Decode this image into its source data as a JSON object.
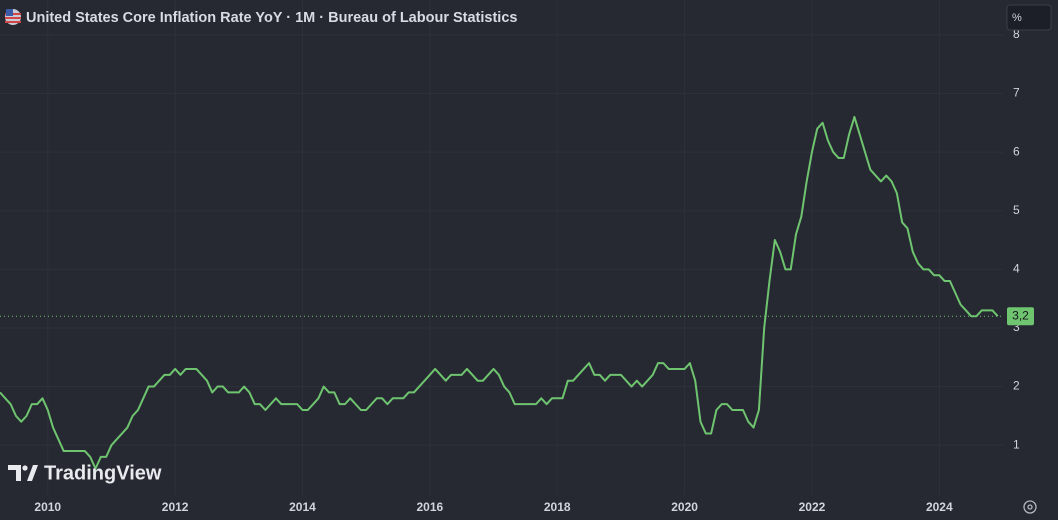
{
  "chart_data": {
    "type": "line",
    "title": "United States Core Inflation Rate YoY · 1M · Bureau of Labour Statistics",
    "unit_button": "%",
    "watermark": "TradingView",
    "x": [
      2009.25,
      2009.333,
      2009.417,
      2009.5,
      2009.583,
      2009.667,
      2009.75,
      2009.833,
      2009.917,
      2010.0,
      2010.083,
      2010.167,
      2010.25,
      2010.333,
      2010.417,
      2010.5,
      2010.583,
      2010.667,
      2010.75,
      2010.833,
      2010.917,
      2011.0,
      2011.083,
      2011.167,
      2011.25,
      2011.333,
      2011.417,
      2011.5,
      2011.583,
      2011.667,
      2011.75,
      2011.833,
      2011.917,
      2012.0,
      2012.083,
      2012.167,
      2012.25,
      2012.333,
      2012.417,
      2012.5,
      2012.583,
      2012.667,
      2012.75,
      2012.833,
      2012.917,
      2013.0,
      2013.083,
      2013.167,
      2013.25,
      2013.333,
      2013.417,
      2013.5,
      2013.583,
      2013.667,
      2013.75,
      2013.833,
      2013.917,
      2014.0,
      2014.083,
      2014.167,
      2014.25,
      2014.333,
      2014.417,
      2014.5,
      2014.583,
      2014.667,
      2014.75,
      2014.833,
      2014.917,
      2015.0,
      2015.083,
      2015.167,
      2015.25,
      2015.333,
      2015.417,
      2015.5,
      2015.583,
      2015.667,
      2015.75,
      2015.833,
      2015.917,
      2016.0,
      2016.083,
      2016.167,
      2016.25,
      2016.333,
      2016.417,
      2016.5,
      2016.583,
      2016.667,
      2016.75,
      2016.833,
      2016.917,
      2017.0,
      2017.083,
      2017.167,
      2017.25,
      2017.333,
      2017.417,
      2017.5,
      2017.583,
      2017.667,
      2017.75,
      2017.833,
      2017.917,
      2018.0,
      2018.083,
      2018.167,
      2018.25,
      2018.333,
      2018.417,
      2018.5,
      2018.583,
      2018.667,
      2018.75,
      2018.833,
      2018.917,
      2019.0,
      2019.083,
      2019.167,
      2019.25,
      2019.333,
      2019.417,
      2019.5,
      2019.583,
      2019.667,
      2019.75,
      2019.833,
      2019.917,
      2020.0,
      2020.083,
      2020.167,
      2020.25,
      2020.333,
      2020.417,
      2020.5,
      2020.583,
      2020.667,
      2020.75,
      2020.833,
      2020.917,
      2021.0,
      2021.083,
      2021.167,
      2021.25,
      2021.333,
      2021.417,
      2021.5,
      2021.583,
      2021.667,
      2021.75,
      2021.833,
      2021.917,
      2022.0,
      2022.083,
      2022.167,
      2022.25,
      2022.333,
      2022.417,
      2022.5,
      2022.583,
      2022.667,
      2022.75,
      2022.833,
      2022.917,
      2023.0,
      2023.083,
      2023.167,
      2023.25,
      2023.333,
      2023.417,
      2023.5,
      2023.583,
      2023.667,
      2023.75,
      2023.833,
      2023.917,
      2024.0,
      2024.083,
      2024.167,
      2024.25,
      2024.333,
      2024.417,
      2024.5,
      2024.583,
      2024.667,
      2024.75,
      2024.833,
      2024.917
    ],
    "series": [
      {
        "color": "#6fc46f",
        "values": [
          1.9,
          1.8,
          1.7,
          1.5,
          1.4,
          1.5,
          1.7,
          1.7,
          1.8,
          1.6,
          1.3,
          1.1,
          0.9,
          0.9,
          0.9,
          0.9,
          0.9,
          0.8,
          0.6,
          0.8,
          0.8,
          1.0,
          1.1,
          1.2,
          1.3,
          1.5,
          1.6,
          1.8,
          2.0,
          2.0,
          2.1,
          2.2,
          2.2,
          2.3,
          2.2,
          2.3,
          2.3,
          2.3,
          2.2,
          2.1,
          1.9,
          2.0,
          2.0,
          1.9,
          1.9,
          1.9,
          2.0,
          1.9,
          1.7,
          1.7,
          1.6,
          1.7,
          1.8,
          1.7,
          1.7,
          1.7,
          1.7,
          1.6,
          1.6,
          1.7,
          1.8,
          2.0,
          1.9,
          1.9,
          1.7,
          1.7,
          1.8,
          1.7,
          1.6,
          1.6,
          1.7,
          1.8,
          1.8,
          1.7,
          1.8,
          1.8,
          1.8,
          1.9,
          1.9,
          2.0,
          2.1,
          2.2,
          2.3,
          2.2,
          2.1,
          2.2,
          2.2,
          2.2,
          2.3,
          2.2,
          2.1,
          2.1,
          2.2,
          2.3,
          2.2,
          2.0,
          1.9,
          1.7,
          1.7,
          1.7,
          1.7,
          1.7,
          1.8,
          1.7,
          1.8,
          1.8,
          1.8,
          2.1,
          2.1,
          2.2,
          2.3,
          2.4,
          2.2,
          2.2,
          2.1,
          2.2,
          2.2,
          2.2,
          2.1,
          2.0,
          2.1,
          2.0,
          2.1,
          2.2,
          2.4,
          2.4,
          2.3,
          2.3,
          2.3,
          2.3,
          2.4,
          2.1,
          1.4,
          1.2,
          1.2,
          1.6,
          1.7,
          1.7,
          1.6,
          1.6,
          1.6,
          1.4,
          1.3,
          1.6,
          3.0,
          3.8,
          4.5,
          4.3,
          4.0,
          4.0,
          4.6,
          4.9,
          5.5,
          6.0,
          6.4,
          6.5,
          6.2,
          6.0,
          5.9,
          5.9,
          6.3,
          6.6,
          6.3,
          6.0,
          5.7,
          5.6,
          5.5,
          5.6,
          5.5,
          5.3,
          4.8,
          4.7,
          4.3,
          4.1,
          4.0,
          4.0,
          3.9,
          3.9,
          3.8,
          3.8,
          3.6,
          3.4,
          3.3,
          3.2,
          3.2,
          3.3,
          3.3,
          3.3,
          3.2
        ]
      }
    ],
    "price_line": {
      "value": 3.2,
      "label": "3,2"
    },
    "xlim": [
      2009.25,
      2025.0
    ],
    "xticks": [
      2010,
      2012,
      2014,
      2016,
      2018,
      2020,
      2022,
      2024
    ],
    "ylim": [
      0.15,
      8.1
    ],
    "yticks": [
      1,
      2,
      3,
      4,
      5,
      6,
      7,
      8
    ],
    "grid": true
  }
}
